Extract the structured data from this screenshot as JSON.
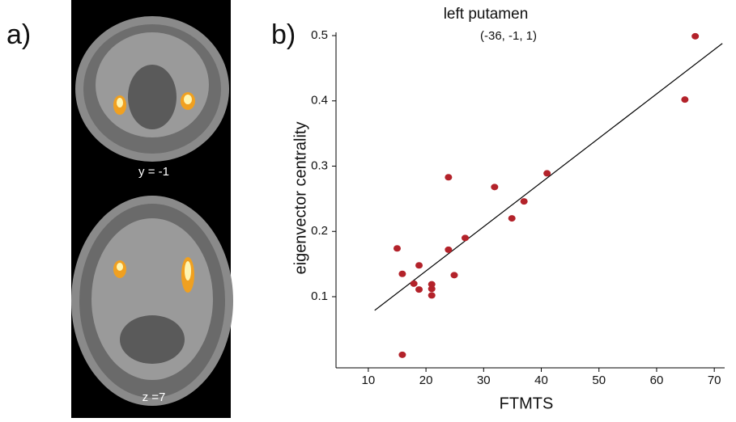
{
  "figure": {
    "panel_a": "a)",
    "panel_b": "b)",
    "slice_labels": [
      "y = -1",
      "z =7"
    ]
  },
  "chart_data": {
    "type": "scatter",
    "title": "left putamen",
    "subtitle": "(-36, -1, 1)",
    "x_label": "FTMTS",
    "y_label": "eigenvector centrality",
    "color": "#b3222a",
    "x": [
      15,
      15.9,
      15.9,
      17.9,
      18.8,
      18.8,
      21,
      21,
      21,
      23.9,
      23.9,
      24.9,
      26.8,
      31.9,
      34.9,
      37,
      41,
      64.9,
      66.7
    ],
    "values": [
      0.174,
      0.135,
      0.011,
      0.12,
      0.148,
      0.111,
      0.119,
      0.112,
      0.102,
      0.283,
      0.172,
      0.133,
      0.19,
      0.268,
      0.22,
      0.246,
      0.289,
      0.402,
      0.499
    ],
    "fit_line": {
      "x": [
        11.1,
        71.4
      ],
      "y": [
        0.079,
        0.488
      ]
    },
    "xlim": [
      4.4,
      71.8
    ],
    "ylim": [
      -0.009,
      0.505
    ],
    "xticks": [
      10,
      20,
      30,
      40,
      50,
      60,
      70
    ],
    "yticks": [
      0.1,
      0.2,
      0.3,
      0.4,
      0.5
    ]
  }
}
